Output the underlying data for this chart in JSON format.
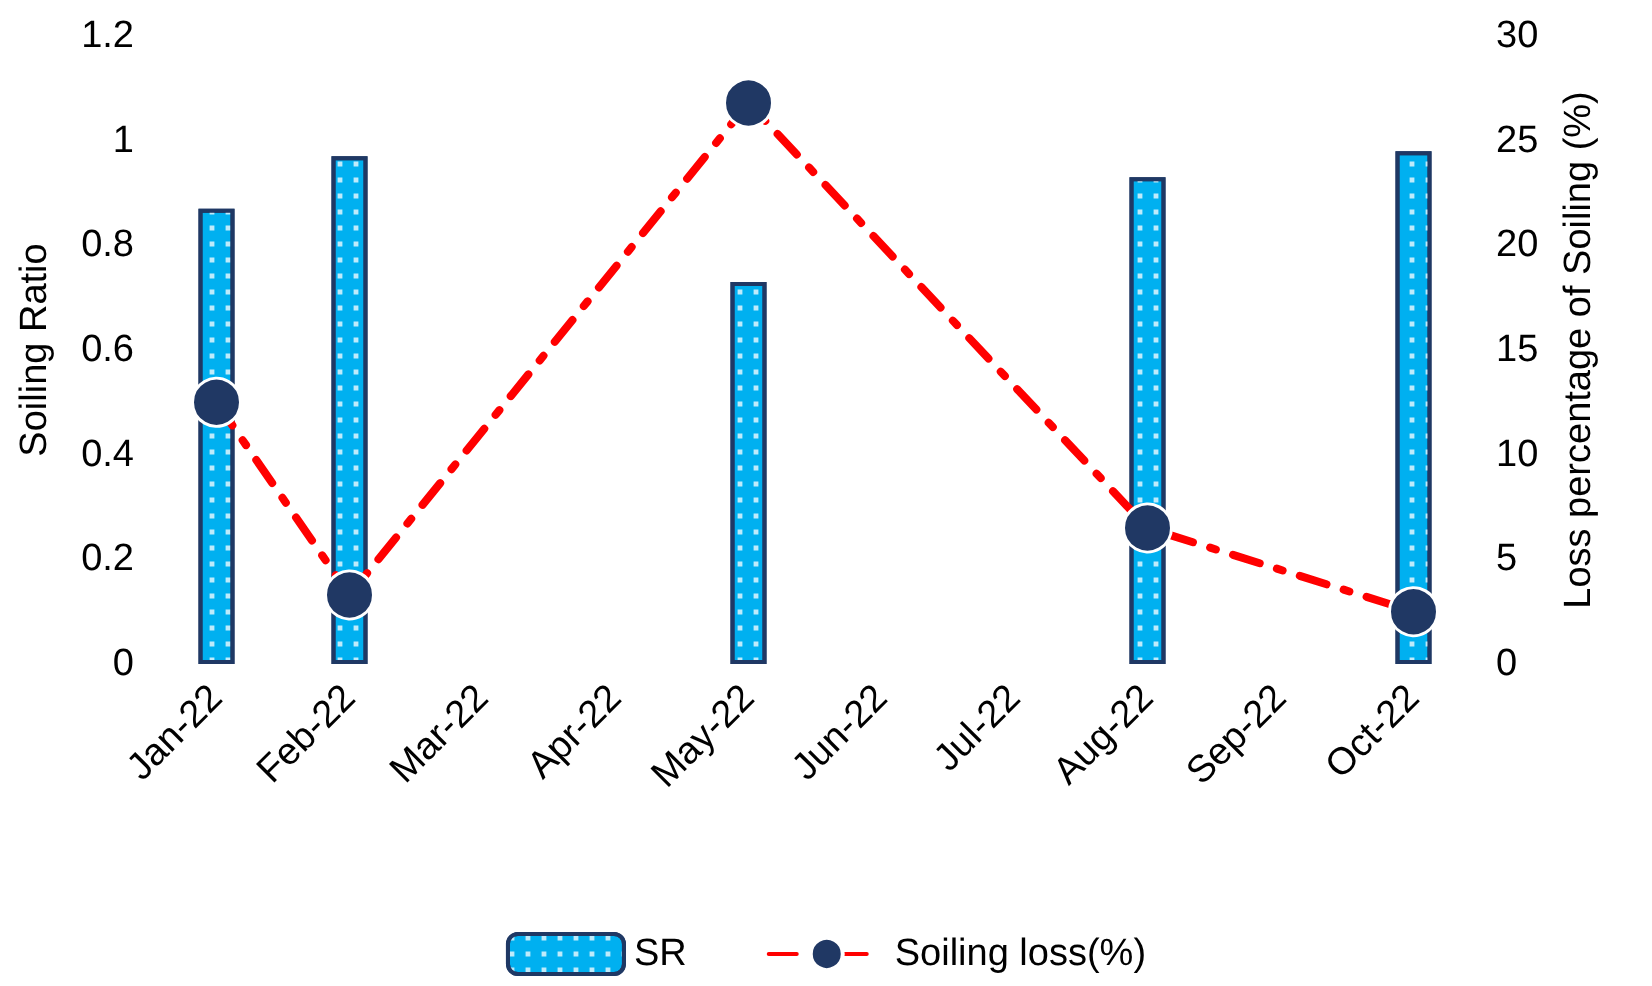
{
  "chart_data": {
    "type": "bar",
    "categories": [
      "Jan-22",
      "Feb-22",
      "Mar-22",
      "Apr-22",
      "May-22",
      "Jun-22",
      "Jul-22",
      "Aug-22",
      "Sep-22",
      "Oct-22"
    ],
    "ylabel": "Soiling Ratio",
    "y2label": "Loss percentage of Soiling (%)",
    "ylim": [
      0,
      1.2
    ],
    "yticks": [
      0,
      0.2,
      0.4,
      0.6,
      0.8,
      1,
      1.2
    ],
    "y2lim": [
      0,
      30
    ],
    "y2ticks": [
      0,
      5,
      10,
      15,
      20,
      25,
      30
    ],
    "series": [
      {
        "name": "SR",
        "color": "#00b0f0",
        "values": [
          0.87,
          0.97,
          null,
          null,
          0.73,
          null,
          null,
          0.93,
          null,
          0.98
        ]
      },
      {
        "name": "Soiling loss(%)",
        "type": "line",
        "axis": "y2",
        "color": "#ff0000",
        "marker": "circle",
        "line_style": "dashed",
        "values": [
          12.5,
          3.3,
          null,
          null,
          26.8,
          null,
          null,
          6.5,
          null,
          2.5
        ]
      }
    ],
    "legend": "bottom",
    "grid": false
  }
}
